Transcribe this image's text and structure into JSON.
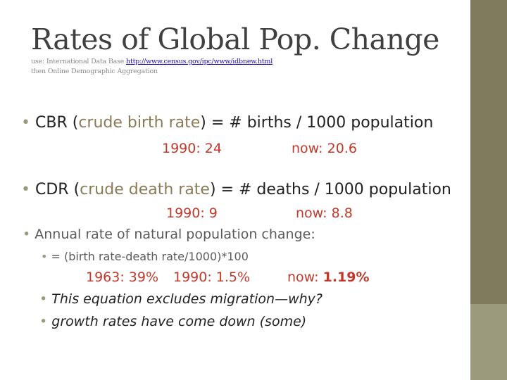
{
  "title": "Rates of Global Pop. Change",
  "source": {
    "prefix": "use: International Data Base ",
    "link": "http://www.census.gov/ipc/www/idbnew.html",
    "line2": "then Online Demographic Aggregation"
  },
  "cbr": {
    "bullet": "•",
    "abbr": "CBR",
    "open": " (",
    "term": "crude birth rate",
    "rest": ") = # births / 1000 population",
    "v1990": "1990: 24",
    "vnow": "now: 20.6"
  },
  "cdr": {
    "bullet": "•",
    "abbr": "CDR",
    "open": " (",
    "term": "crude death rate",
    "rest": ") = # deaths / 1000 population",
    "v1990": "1990: 9",
    "vnow_label": "now: ",
    "vnow_value": "8.8"
  },
  "annual": {
    "bullet": "•",
    "text": "Annual rate of natural population change:",
    "sub_bullet": "•",
    "formula": "= (birth rate-death rate/1000)*100",
    "v1963": "1963: 39%",
    "v1990": "1990: 1.5%",
    "vnow_label": "now: ",
    "vnow_value": "1.19%"
  },
  "notes": [
    {
      "bullet": "•",
      "text": "This equation excludes migration—why?"
    },
    {
      "bullet": "•",
      "text": "growth rates have come down (some)"
    }
  ],
  "colors": {
    "sidebar": "#7f7b5c",
    "sidebar_block": "#9c9a7c",
    "accent_orange": "#c0392b"
  }
}
